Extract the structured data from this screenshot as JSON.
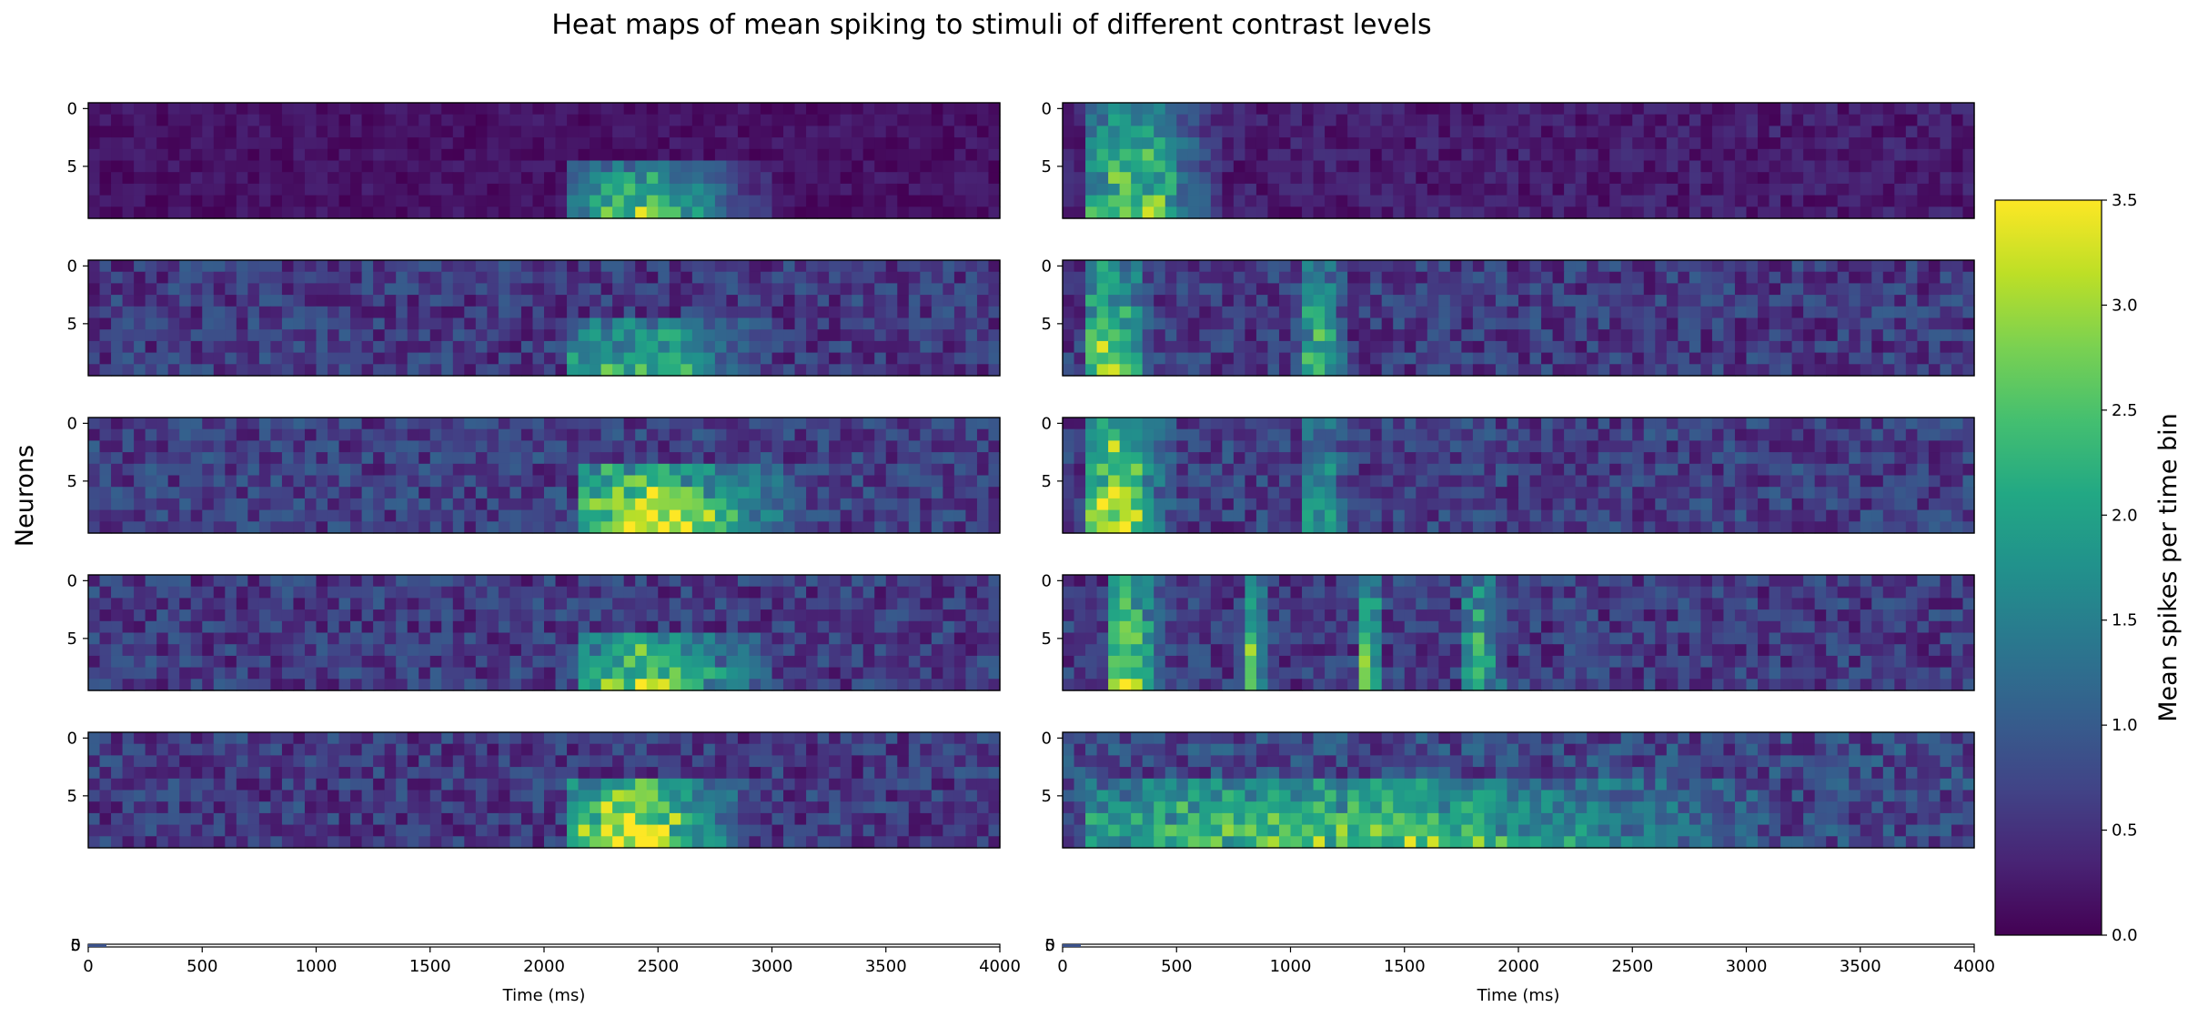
{
  "chart_data": {
    "type": "heatmap",
    "title": "Heat maps of mean spiking to stimuli of different contrast levels",
    "ylabel": "Neurons",
    "xlabel": "Time (ms)",
    "colorbar": {
      "label": "Mean spikes per time bin",
      "range": [
        0,
        3.5
      ],
      "ticks": [
        "0.0",
        "0.5",
        "1.0",
        "1.5",
        "2.0",
        "2.5",
        "3.0",
        "3.5"
      ],
      "colormap": "viridis"
    },
    "x_range": [
      0,
      4000
    ],
    "x_ticks": [
      "0",
      "500",
      "1000",
      "1500",
      "2000",
      "2500",
      "3000",
      "3500",
      "4000"
    ],
    "y_ticks": [
      "0",
      "5"
    ],
    "neurons_per_panel": 10,
    "time_bins": 80,
    "columns": [
      {
        "name": "left",
        "panels": [
          {
            "row": 1,
            "background": 0.15,
            "noise": 0.35,
            "responses": [
              {
                "t_start": 2100,
                "t_end": 3000,
                "peak": 2.8,
                "neurons_from": 5
              }
            ]
          },
          {
            "row": 2,
            "background": 0.55,
            "noise": 0.9,
            "responses": [
              {
                "t_start": 2100,
                "t_end": 3000,
                "peak": 2.0,
                "neurons_from": 5
              }
            ]
          },
          {
            "row": 3,
            "background": 0.6,
            "noise": 0.9,
            "responses": [
              {
                "t_start": 2150,
                "t_end": 3100,
                "peak": 3.2,
                "neurons_from": 4
              }
            ]
          },
          {
            "row": 4,
            "background": 0.55,
            "noise": 0.9,
            "responses": [
              {
                "t_start": 2150,
                "t_end": 3000,
                "peak": 2.7,
                "neurons_from": 5
              }
            ]
          },
          {
            "row": 5,
            "background": 0.55,
            "noise": 0.9,
            "responses": [
              {
                "t_start": 2100,
                "t_end": 2900,
                "peak": 3.4,
                "neurons_from": 4
              }
            ]
          }
        ]
      },
      {
        "name": "right",
        "panels": [
          {
            "row": 1,
            "background": 0.25,
            "noise": 0.5,
            "responses": [
              {
                "t_start": 80,
                "t_end": 700,
                "peak": 3.0,
                "neurons_from": 0
              }
            ]
          },
          {
            "row": 2,
            "background": 0.55,
            "noise": 0.9,
            "responses": [
              {
                "t_start": 80,
                "t_end": 400,
                "peak": 2.8,
                "neurons_from": 0
              },
              {
                "t_start": 1050,
                "t_end": 1250,
                "peak": 2.2,
                "neurons_from": 0
              }
            ]
          },
          {
            "row": 3,
            "background": 0.6,
            "noise": 0.9,
            "responses": [
              {
                "t_start": 80,
                "t_end": 500,
                "peak": 3.2,
                "neurons_from": 0
              },
              {
                "t_start": 1050,
                "t_end": 1250,
                "peak": 1.6,
                "neurons_from": 0
              }
            ]
          },
          {
            "row": 4,
            "background": 0.55,
            "noise": 0.9,
            "responses": [
              {
                "t_start": 200,
                "t_end": 450,
                "peak": 3.1,
                "neurons_from": 0
              },
              {
                "t_start": 780,
                "t_end": 920,
                "peak": 2.4,
                "neurons_from": 0
              },
              {
                "t_start": 1300,
                "t_end": 1420,
                "peak": 2.2,
                "neurons_from": 0
              },
              {
                "t_start": 1750,
                "t_end": 1950,
                "peak": 2.0,
                "neurons_from": 0
              }
            ]
          },
          {
            "row": 5,
            "background": 0.7,
            "noise": 1.0,
            "responses": [
              {
                "t_start": 100,
                "t_end": 3100,
                "peak": 2.2,
                "neurons_from": 4
              }
            ]
          }
        ]
      }
    ],
    "empty_bottom_axes": 2
  }
}
